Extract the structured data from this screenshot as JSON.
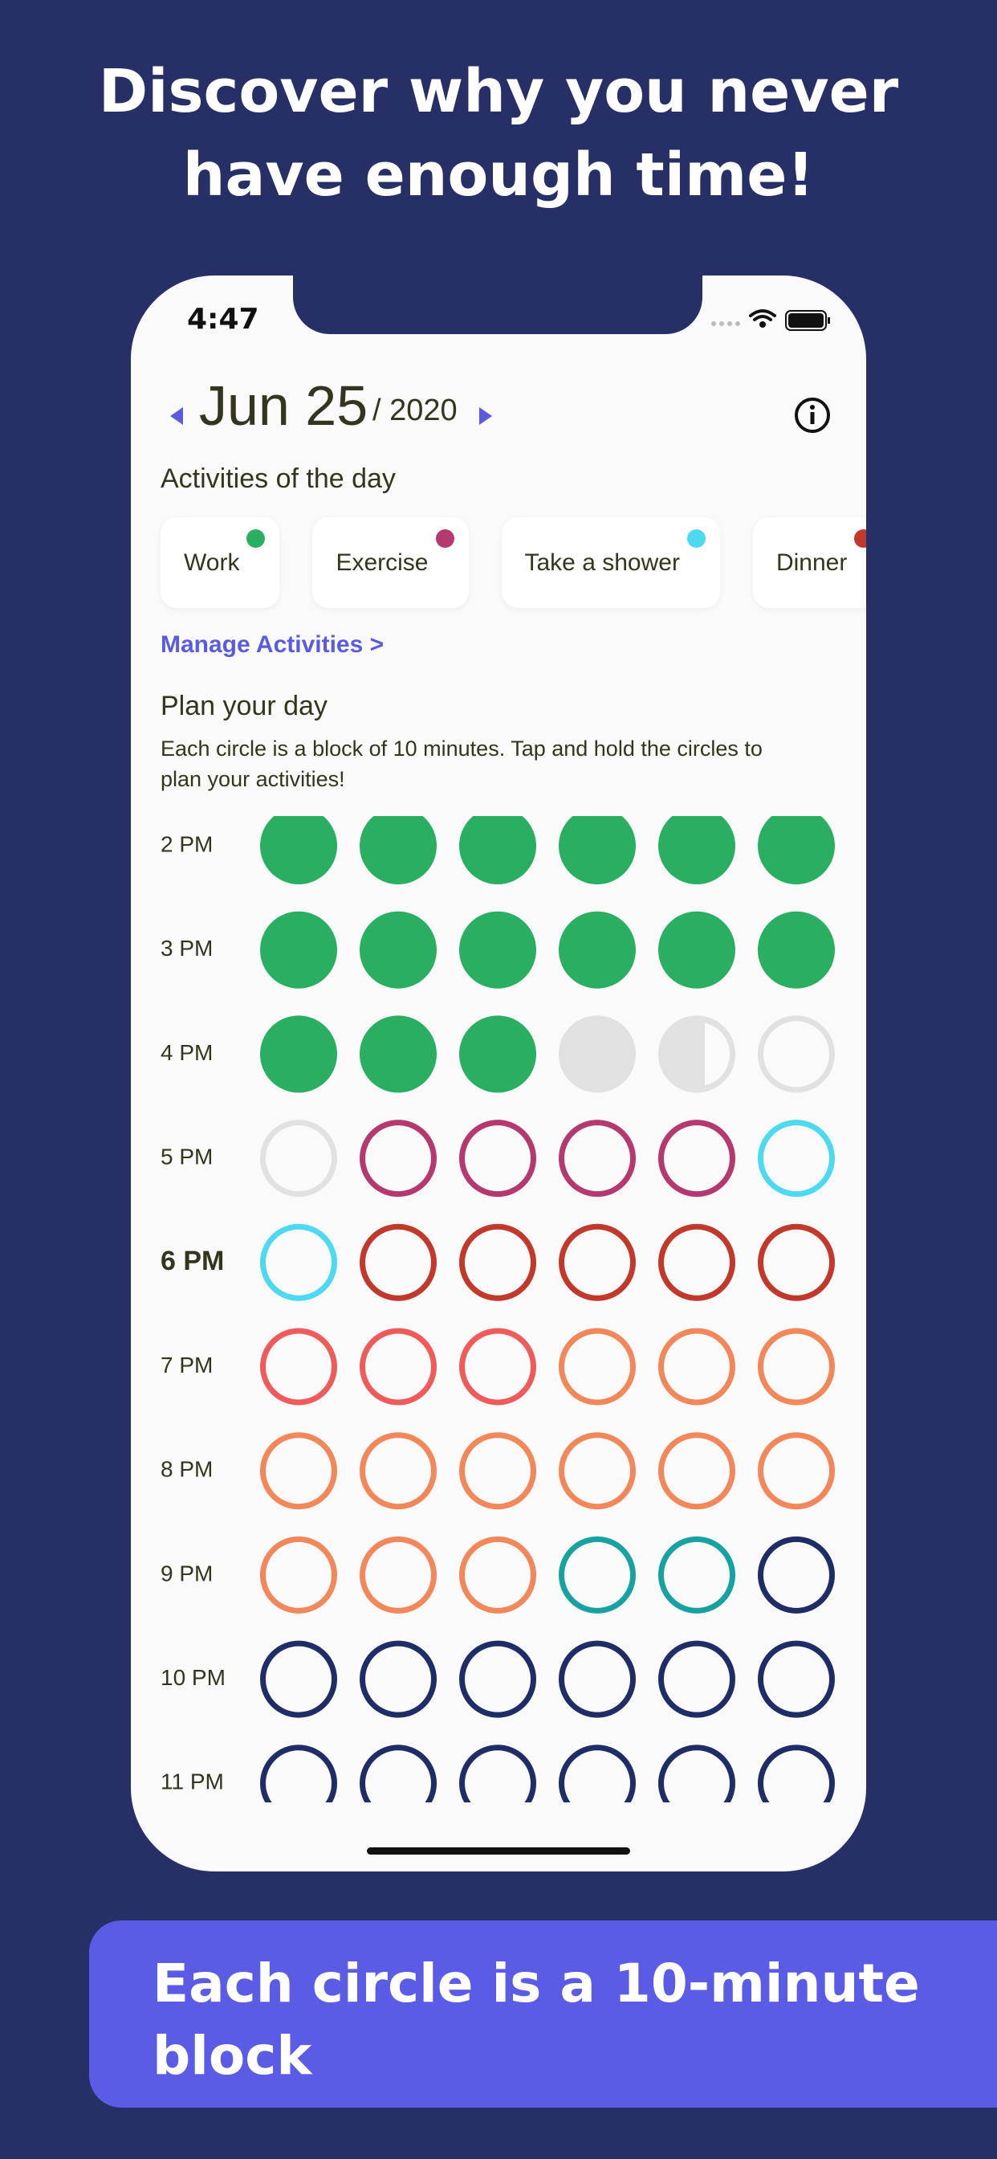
{
  "header": {
    "title": "Discover why you never have enough time!"
  },
  "status_bar": {
    "time": "4:47"
  },
  "date": {
    "day": "Jun 25",
    "year": "/ 2020"
  },
  "activities": {
    "heading": "Activities of the day",
    "items": [
      {
        "label": "Work",
        "color": "#2aae62"
      },
      {
        "label": "Exercise",
        "color": "#b5386f"
      },
      {
        "label": "Take a shower",
        "color": "#4dd9ef"
      },
      {
        "label": "Dinner",
        "color": "#c0392b"
      }
    ],
    "manage": "Manage Activities >"
  },
  "plan": {
    "heading": "Plan your day",
    "description": "Each circle is a block of 10 minutes. Tap and hold the circles to plan your activities!",
    "rows": [
      {
        "label": "2 PM",
        "current": false,
        "circles": [
          {
            "style": "filled",
            "color": "#2aae62"
          },
          {
            "style": "filled",
            "color": "#2aae62"
          },
          {
            "style": "filled",
            "color": "#2aae62"
          },
          {
            "style": "filled",
            "color": "#2aae62"
          },
          {
            "style": "filled",
            "color": "#2aae62"
          },
          {
            "style": "filled",
            "color": "#2aae62"
          }
        ]
      },
      {
        "label": "3 PM",
        "current": false,
        "circles": [
          {
            "style": "filled",
            "color": "#2aae62"
          },
          {
            "style": "filled",
            "color": "#2aae62"
          },
          {
            "style": "filled",
            "color": "#2aae62"
          },
          {
            "style": "filled",
            "color": "#2aae62"
          },
          {
            "style": "filled",
            "color": "#2aae62"
          },
          {
            "style": "filled",
            "color": "#2aae62"
          }
        ]
      },
      {
        "label": "4 PM",
        "current": false,
        "circles": [
          {
            "style": "filled",
            "color": "#2aae62"
          },
          {
            "style": "filled",
            "color": "#2aae62"
          },
          {
            "style": "filled",
            "color": "#2aae62"
          },
          {
            "style": "filled",
            "color": "#e1e1e1"
          },
          {
            "style": "half",
            "color": "#e1e1e1"
          },
          {
            "style": "outline",
            "color": "#e1e1e1"
          }
        ]
      },
      {
        "label": "5 PM",
        "current": false,
        "circles": [
          {
            "style": "outline",
            "color": "#e1e1e1"
          },
          {
            "style": "outline",
            "color": "#b5386f"
          },
          {
            "style": "outline",
            "color": "#b5386f"
          },
          {
            "style": "outline",
            "color": "#b5386f"
          },
          {
            "style": "outline",
            "color": "#b5386f"
          },
          {
            "style": "outline",
            "color": "#4dd9ef"
          }
        ]
      },
      {
        "label": "6 PM",
        "current": true,
        "circles": [
          {
            "style": "outline",
            "color": "#4dd9ef"
          },
          {
            "style": "outline",
            "color": "#c0392b"
          },
          {
            "style": "outline",
            "color": "#c0392b"
          },
          {
            "style": "outline",
            "color": "#c0392b"
          },
          {
            "style": "outline",
            "color": "#c0392b"
          },
          {
            "style": "outline",
            "color": "#c0392b"
          }
        ]
      },
      {
        "label": "7 PM",
        "current": false,
        "circles": [
          {
            "style": "outline",
            "color": "#ef5b5b"
          },
          {
            "style": "outline",
            "color": "#ef5b5b"
          },
          {
            "style": "outline",
            "color": "#ef5b5b"
          },
          {
            "style": "outline",
            "color": "#f2875a"
          },
          {
            "style": "outline",
            "color": "#f2875a"
          },
          {
            "style": "outline",
            "color": "#f2875a"
          }
        ]
      },
      {
        "label": "8 PM",
        "current": false,
        "circles": [
          {
            "style": "outline",
            "color": "#f2875a"
          },
          {
            "style": "outline",
            "color": "#f2875a"
          },
          {
            "style": "outline",
            "color": "#f2875a"
          },
          {
            "style": "outline",
            "color": "#f2875a"
          },
          {
            "style": "outline",
            "color": "#f2875a"
          },
          {
            "style": "outline",
            "color": "#f2875a"
          }
        ]
      },
      {
        "label": "9 PM",
        "current": false,
        "circles": [
          {
            "style": "outline",
            "color": "#f2875a"
          },
          {
            "style": "outline",
            "color": "#f2875a"
          },
          {
            "style": "outline",
            "color": "#f2875a"
          },
          {
            "style": "outline",
            "color": "#17a2a0"
          },
          {
            "style": "outline",
            "color": "#17a2a0"
          },
          {
            "style": "outline",
            "color": "#1e2d66"
          }
        ]
      },
      {
        "label": "10 PM",
        "current": false,
        "circles": [
          {
            "style": "outline",
            "color": "#1e2d66"
          },
          {
            "style": "outline",
            "color": "#1e2d66"
          },
          {
            "style": "outline",
            "color": "#1e2d66"
          },
          {
            "style": "outline",
            "color": "#1e2d66"
          },
          {
            "style": "outline",
            "color": "#1e2d66"
          },
          {
            "style": "outline",
            "color": "#1e2d66"
          }
        ]
      },
      {
        "label": "11 PM",
        "current": false,
        "circles": [
          {
            "style": "outline",
            "color": "#1e2d66"
          },
          {
            "style": "outline",
            "color": "#1e2d66"
          },
          {
            "style": "outline",
            "color": "#1e2d66"
          },
          {
            "style": "outline",
            "color": "#1e2d66"
          },
          {
            "style": "outline",
            "color": "#1e2d66"
          },
          {
            "style": "outline",
            "color": "#1e2d66"
          }
        ]
      }
    ]
  },
  "footer": {
    "caption": "Each circle is a 10-minute block"
  }
}
